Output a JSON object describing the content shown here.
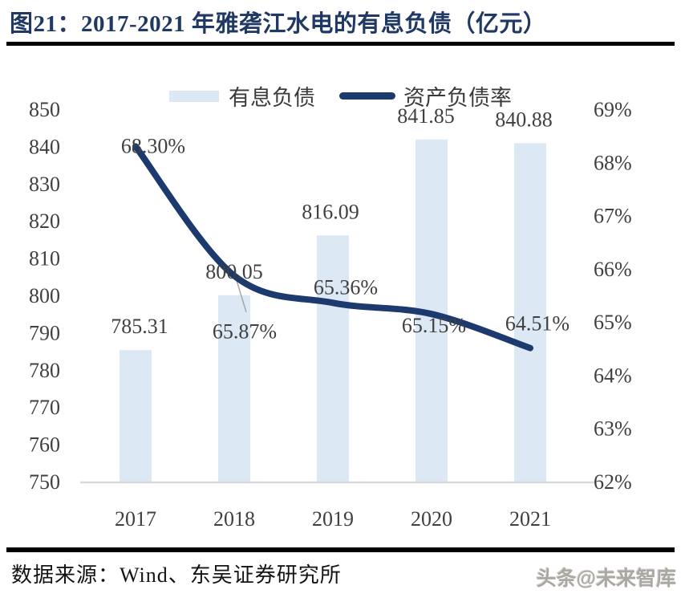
{
  "header": {
    "title": "图21：2017-2021 年雅砻江水电的有息负债（亿元）"
  },
  "chart_data": {
    "type": "bar+line",
    "title": "2017-2021 年雅砻江水电的有息负债（亿元）",
    "categories": [
      "2017",
      "2018",
      "2019",
      "2020",
      "2021"
    ],
    "series": [
      {
        "name": "有息负债",
        "type": "bar",
        "axis": "left",
        "values": [
          785.31,
          800.05,
          816.09,
          841.85,
          840.88
        ],
        "labels": [
          "785.31",
          "800.05",
          "816.09",
          "841.85",
          "840.88"
        ],
        "color": "#dce9f5"
      },
      {
        "name": "资产负债率",
        "type": "line",
        "axis": "right",
        "values": [
          68.3,
          65.87,
          65.36,
          65.15,
          64.51
        ],
        "labels": [
          "68.30%",
          "65.87%",
          "65.36%",
          "65.15%",
          "64.51%"
        ],
        "color": "#1c3a6e"
      }
    ],
    "left_axis": {
      "min": 750,
      "max": 850,
      "step": 10,
      "ticks": [
        "850",
        "840",
        "830",
        "820",
        "810",
        "800",
        "790",
        "780",
        "770",
        "760",
        "750"
      ]
    },
    "right_axis": {
      "min": 62,
      "max": 69,
      "step": 1,
      "ticks": [
        "69%",
        "68%",
        "67%",
        "66%",
        "65%",
        "64%",
        "63%",
        "62%"
      ]
    },
    "legend_position": "top",
    "grid": false,
    "colors": {
      "bar_fill": "#dce9f5",
      "line_stroke": "#1c3a6e",
      "label_text": "#404040",
      "axis_line": "#d9d9d9",
      "title_text": "#1f3864"
    }
  },
  "footer": {
    "source": "数据来源：Wind、东吴证券研究所",
    "watermark": "头条@未来智库"
  }
}
